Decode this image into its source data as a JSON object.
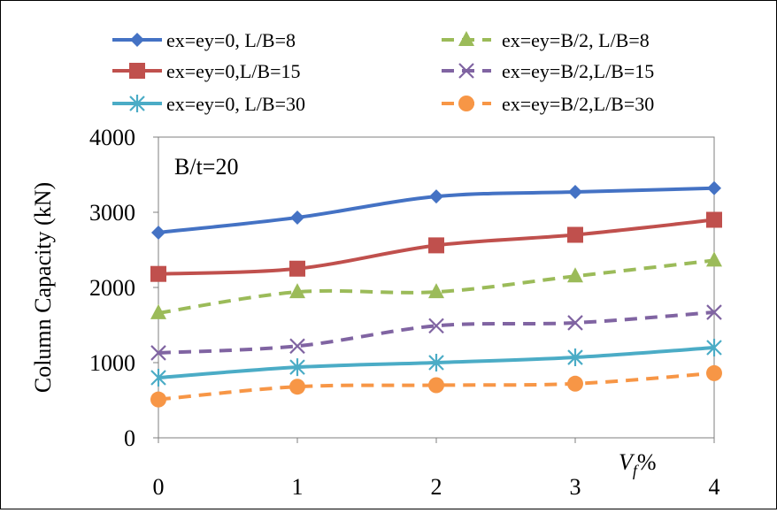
{
  "chart_data": {
    "type": "line",
    "x": [
      0,
      1,
      2,
      3,
      4
    ],
    "xlabel_var": "V",
    "xlabel_sub": "f",
    "xlabel_unit": "%",
    "ylabel": "Column Capacity (kN)",
    "annotation": "B/t=20",
    "xlim": [
      0,
      4
    ],
    "ylim": [
      0,
      4000
    ],
    "yticks": [
      0,
      1000,
      2000,
      3000,
      4000
    ],
    "xticks": [
      0,
      1,
      2,
      3,
      4
    ],
    "grid": false,
    "legend_position": "top",
    "series": [
      {
        "name": "ex=ey=0, L/B=8",
        "values": [
          2730,
          2930,
          3210,
          3270,
          3320
        ],
        "color": "#4472C4",
        "marker": "diamond",
        "dashed": false
      },
      {
        "name": "ex=ey=0,L/B=15",
        "values": [
          2180,
          2250,
          2560,
          2700,
          2900
        ],
        "color": "#C0504D",
        "marker": "square",
        "dashed": false
      },
      {
        "name": "ex=ey=0, L/B=30",
        "values": [
          800,
          940,
          1000,
          1070,
          1200
        ],
        "color": "#4BACC6",
        "marker": "star",
        "dashed": false
      },
      {
        "name": "ex=ey=B/2, L/B=8",
        "values": [
          1660,
          1940,
          1940,
          2150,
          2360
        ],
        "color": "#9BBB59",
        "marker": "triangle",
        "dashed": true
      },
      {
        "name": "ex=ey=B/2,L/B=15",
        "values": [
          1130,
          1220,
          1490,
          1530,
          1670
        ],
        "color": "#8064A2",
        "marker": "x",
        "dashed": true
      },
      {
        "name": "ex=ey=B/2,L/B=30",
        "values": [
          510,
          680,
          700,
          720,
          860
        ],
        "color": "#F79646",
        "marker": "circle",
        "dashed": true
      }
    ]
  }
}
